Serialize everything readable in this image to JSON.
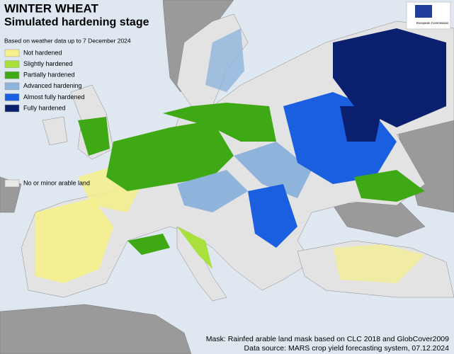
{
  "header": {
    "title": "WINTER WHEAT",
    "subtitle": "Simulated hardening stage",
    "note": "Based on weather data up to 7 December 2024"
  },
  "logo": {
    "text": "European Commission"
  },
  "legend": {
    "items": [
      {
        "label": "Not hardened",
        "color": "#f5f08a"
      },
      {
        "label": "Slightly hardened",
        "color": "#a8e03c"
      },
      {
        "label": "Partially hardened",
        "color": "#3fa815"
      },
      {
        "label": "Advanced hardening",
        "color": "#8fb4dc"
      },
      {
        "label": "Almost fully hardened",
        "color": "#1a5fe0"
      },
      {
        "label": "Fully hardened",
        "color": "#0a1f6e"
      }
    ],
    "other": {
      "label": "No or minor arable land",
      "color": "#e8e8e8"
    }
  },
  "footer": {
    "mask": "Mask: Rainfed arable land mask based on CLC 2018 and GlobCover2009",
    "source": "Data source: MARS crop yield forecasting system, 07.12.2024"
  }
}
